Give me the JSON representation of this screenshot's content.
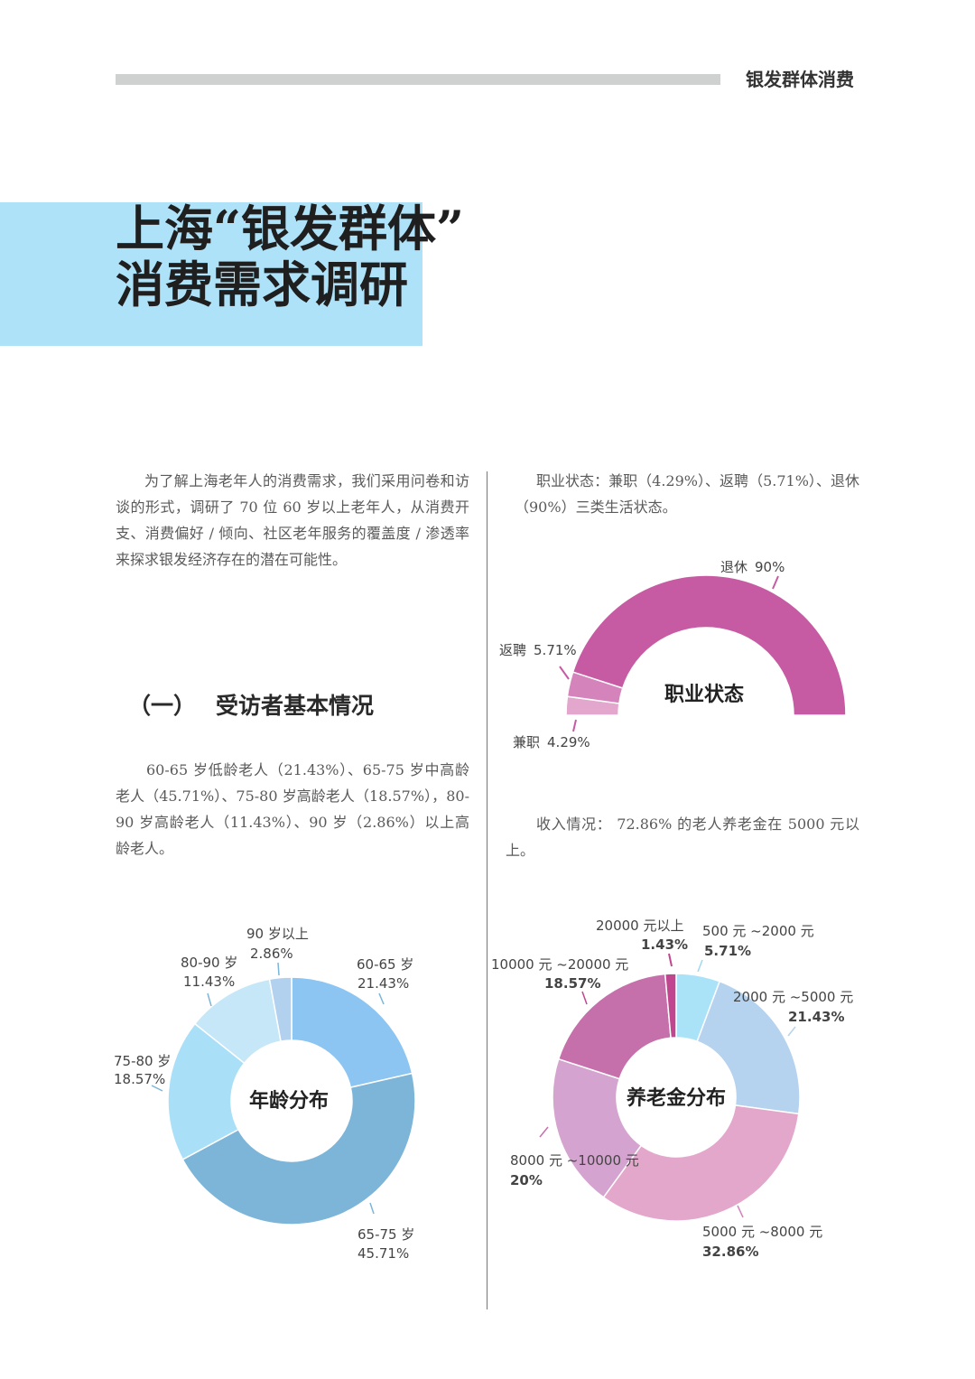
{
  "header": {
    "section": "银发群体消费"
  },
  "title": {
    "line1": "上海“银发群体”",
    "line2": "消费需求调研"
  },
  "intro": "为了解上海老年人的消费需求，我们采用问卷和访谈的形式，调研了 70 位 60 岁以上老年人，从消费开支、消费偏好 / 倾向、社区老年服务的覆盖度 / 渗透率来探求银发经济存在的潜在可能性。",
  "section1": {
    "number": "（一）",
    "title": "受访者基本情况"
  },
  "age_text": "60-65 岁低龄老人（21.43%）、65-75 岁中高龄老人（45.71%）、75-80 岁高龄老人（18.57%），80-90 岁高龄老人（11.43%）、90 岁（2.86%）以上高龄老人。",
  "job_text": "职业状态：兼职（4.29%）、返聘（5.71%）、退休（90%）三类生活状态。",
  "income_text": "收入情况： 72.86% 的老人养老金在 5000 元以上。",
  "chart_data": [
    {
      "type": "pie",
      "title": "职业状态",
      "categories": [
        "兼职",
        "返聘",
        "退休"
      ],
      "values": [
        4.29,
        5.71,
        90
      ],
      "value_labels": [
        "4.29%",
        "5.71%",
        "90%"
      ],
      "colors": [
        "#e3a7cd",
        "#d583bb",
        "#c75ba3"
      ]
    },
    {
      "type": "pie",
      "title": "年龄分布",
      "categories": [
        "60-65 岁",
        "65-75 岁",
        "75-80 岁",
        "80-90 岁",
        "90 岁以上"
      ],
      "values": [
        21.43,
        45.71,
        18.57,
        11.43,
        2.86
      ],
      "value_labels": [
        "21.43%",
        "45.71%",
        "18.57%",
        "11.43%",
        "2.86%"
      ],
      "colors": [
        "#8cc4f2",
        "#7db5d8",
        "#a9e0f8",
        "#c5e7f8",
        "#b2d1ef"
      ]
    },
    {
      "type": "pie",
      "title": "养老金分布",
      "categories": [
        "500 元 ~2000 元",
        "2000 元 ~5000 元",
        "5000 元 ~8000 元",
        "8000 元 ~10000 元",
        "10000 元 ~20000 元",
        "20000 元以上"
      ],
      "values": [
        5.71,
        21.43,
        32.86,
        20,
        18.57,
        1.43
      ],
      "value_labels": [
        "5.71%",
        "21.43%",
        "32.86%",
        "20%",
        "18.57%",
        "1.43%"
      ],
      "colors": [
        "#aae3f8",
        "#b5d2ef",
        "#e3a7cb",
        "#d5a3cf",
        "#c670ab",
        "#c0468f"
      ]
    }
  ]
}
